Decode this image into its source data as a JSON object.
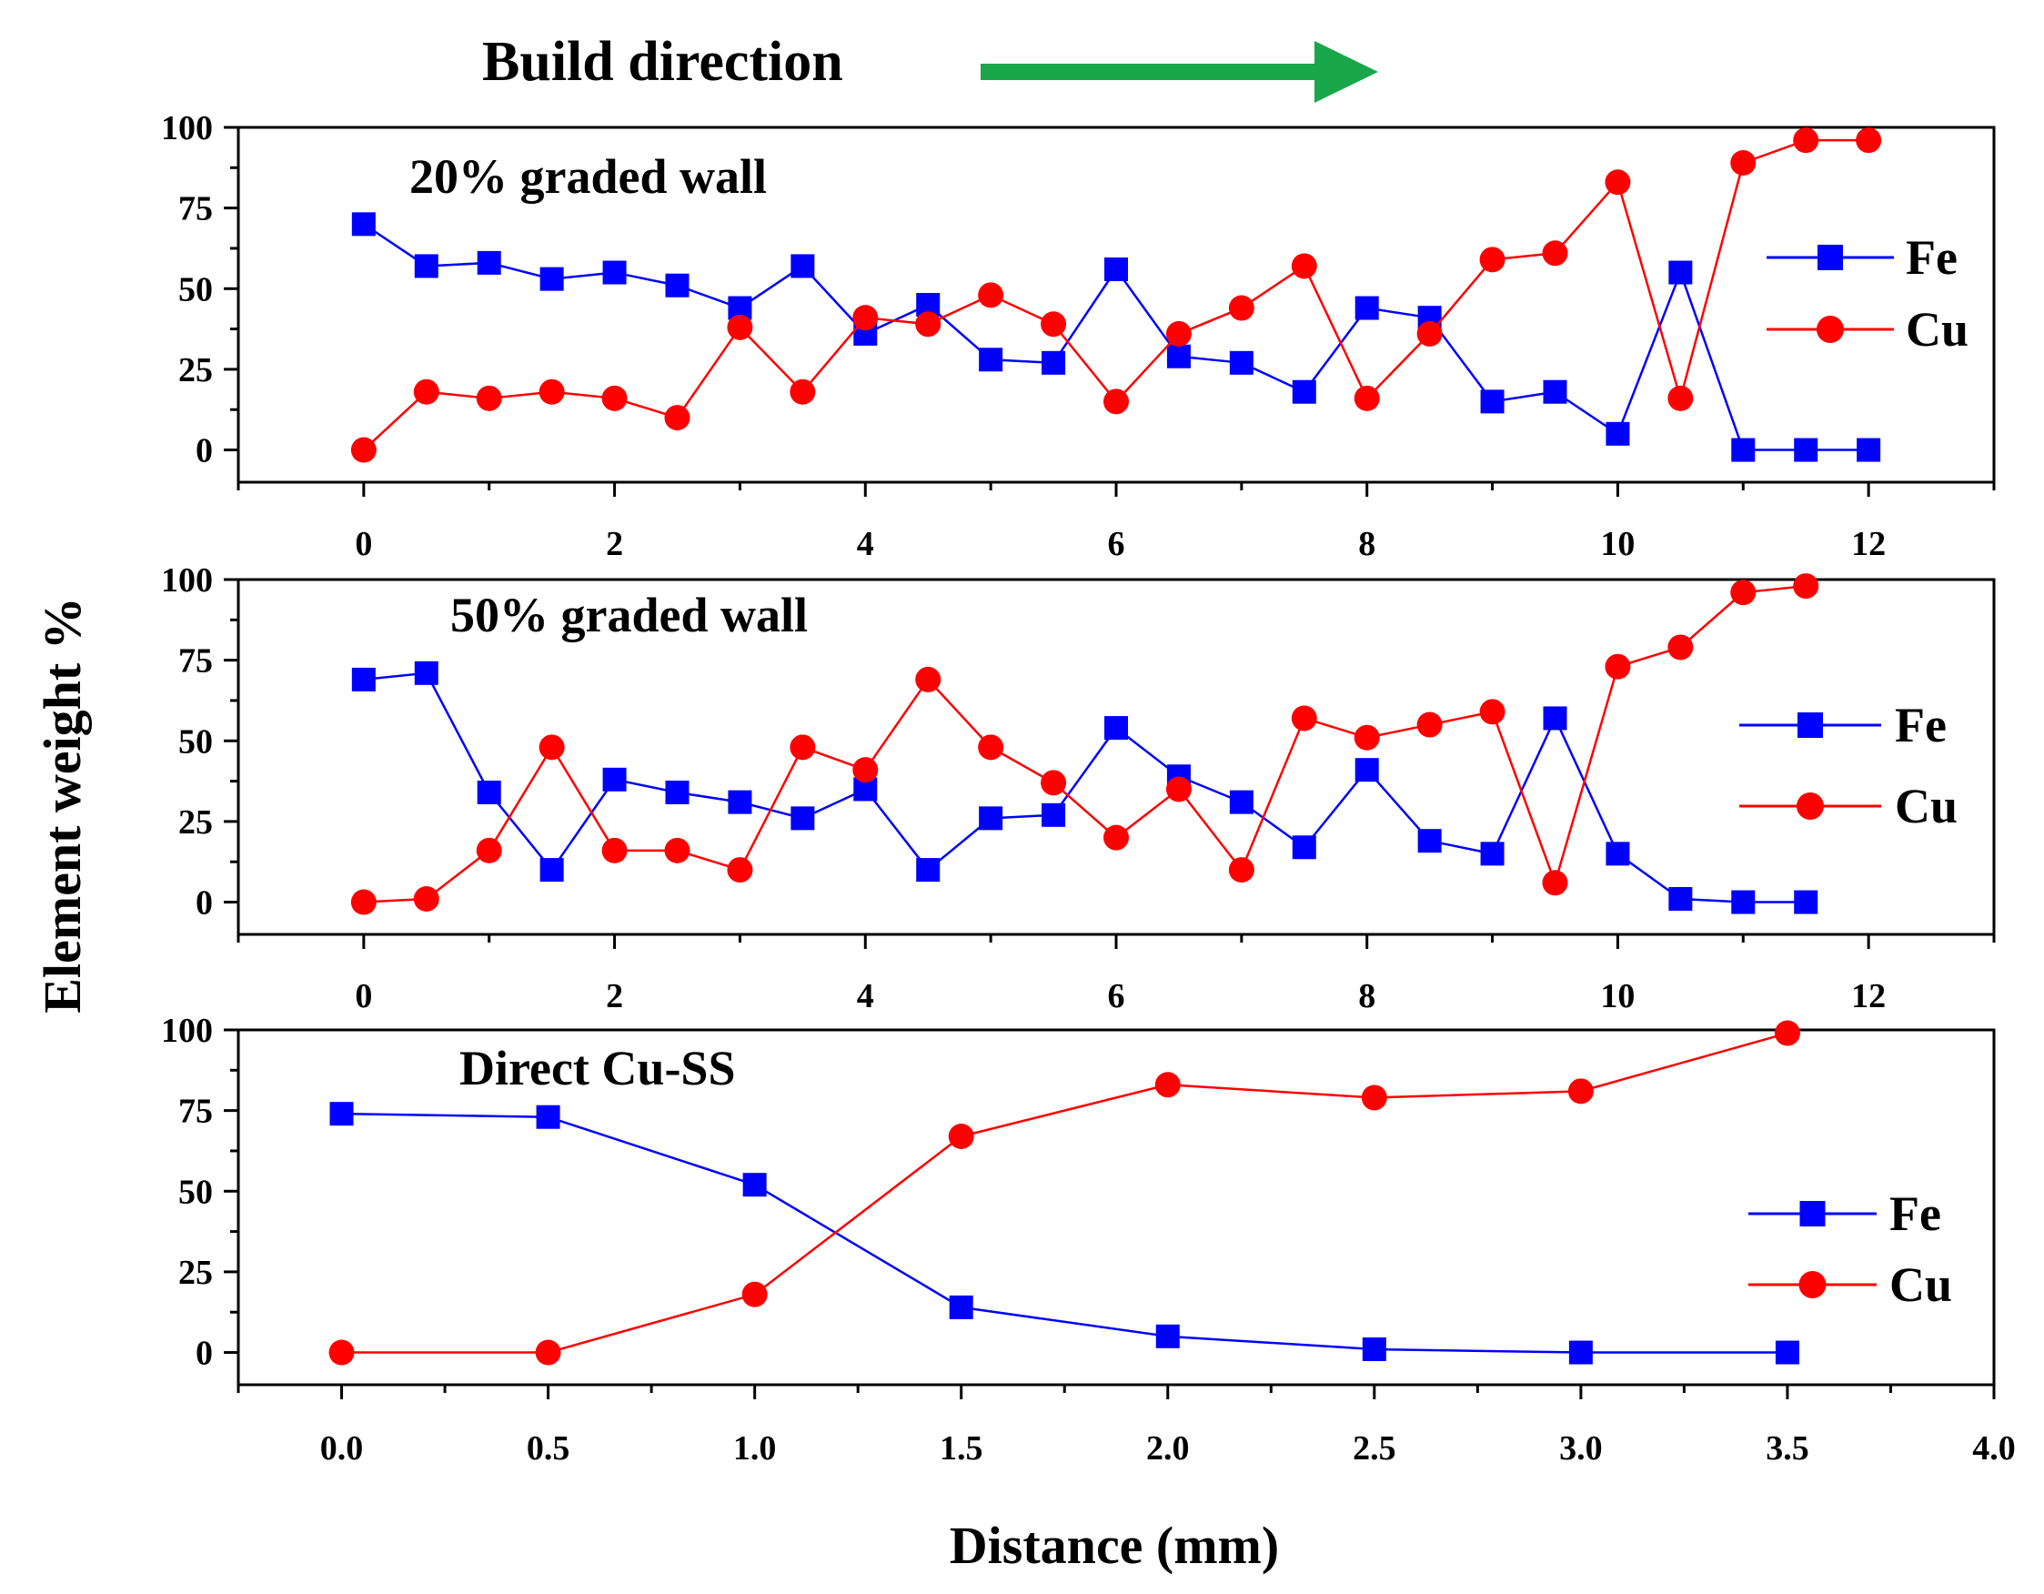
{
  "header": {
    "title": "Build direction",
    "arrow_color": "#1aa64a"
  },
  "colors": {
    "fe": "#0000ff",
    "cu": "#ff0000"
  },
  "ylabel": "Element weight %",
  "xlabel": "Distance (mm)",
  "chart_data": [
    {
      "type": "line",
      "title": "20% graded wall",
      "xlim": [
        -1,
        13
      ],
      "ylim": [
        -10,
        100
      ],
      "xticks": [
        0,
        2,
        4,
        6,
        8,
        10,
        12
      ],
      "xtick_labels": [
        "0",
        "2",
        "4",
        "6",
        "8",
        "10",
        "12"
      ],
      "yticks": [
        0,
        25,
        50,
        75,
        100
      ],
      "ytick_labels": [
        "0",
        "25",
        "50",
        "75",
        "100"
      ],
      "legend_position": "right",
      "series": [
        {
          "name": "Fe",
          "marker": "square",
          "color": "#0000ff",
          "dashed_points": [
            0,
            1,
            2,
            3,
            4,
            5,
            6,
            7,
            9,
            10,
            11,
            12,
            13,
            14,
            15,
            16,
            17,
            18,
            19,
            20,
            22,
            23,
            24
          ],
          "x": [
            0,
            0.5,
            1,
            1.5,
            2,
            2.5,
            3,
            3.5,
            4,
            4.5,
            5,
            5.5,
            6,
            6.5,
            7,
            7.5,
            8,
            8.5,
            9,
            9.5,
            10,
            10.5,
            11,
            11.5,
            12
          ],
          "y": [
            70,
            57,
            58,
            53,
            55,
            51,
            44,
            57,
            36,
            45,
            28,
            27,
            56,
            29,
            27,
            18,
            44,
            41,
            15,
            18,
            5,
            55,
            0,
            0,
            0
          ]
        },
        {
          "name": "Cu",
          "marker": "circle",
          "color": "#ff0000",
          "x": [
            0,
            0.5,
            1,
            1.5,
            2,
            2.5,
            3,
            3.5,
            4,
            4.5,
            5,
            5.5,
            6,
            6.5,
            7,
            7.5,
            8,
            8.5,
            9,
            9.5,
            10,
            10.5,
            11,
            11.5,
            12
          ],
          "y": [
            0,
            18,
            16,
            18,
            16,
            10,
            38,
            18,
            41,
            39,
            48,
            39,
            15,
            36,
            44,
            57,
            16,
            36,
            59,
            61,
            83,
            16,
            89,
            96,
            96
          ]
        }
      ]
    },
    {
      "type": "line",
      "title": "50% graded wall",
      "xlim": [
        -1,
        13
      ],
      "ylim": [
        -10,
        100
      ],
      "xticks": [
        0,
        2,
        4,
        6,
        8,
        10,
        12
      ],
      "xtick_labels": [
        "0",
        "2",
        "4",
        "6",
        "8",
        "10",
        "12"
      ],
      "yticks": [
        0,
        25,
        50,
        75,
        100
      ],
      "ytick_labels": [
        "0",
        "25",
        "50",
        "75",
        "100"
      ],
      "legend_position": "right",
      "series": [
        {
          "name": "Fe",
          "marker": "square",
          "color": "#0000ff",
          "x": [
            0,
            0.5,
            1,
            1.5,
            2,
            2.5,
            3,
            3.5,
            4,
            4.5,
            5,
            5.5,
            6,
            6.5,
            7,
            7.5,
            8,
            8.5,
            9,
            9.5,
            10,
            10.5,
            11,
            11.5
          ],
          "y": [
            69,
            71,
            34,
            10,
            38,
            34,
            31,
            26,
            35,
            10,
            26,
            27,
            54,
            39,
            31,
            17,
            41,
            19,
            15,
            57,
            15,
            1,
            0,
            0
          ]
        },
        {
          "name": "Cu",
          "marker": "circle",
          "color": "#ff0000",
          "x": [
            0,
            0.5,
            1,
            1.5,
            2,
            2.5,
            3,
            3.5,
            4,
            4.5,
            5,
            5.5,
            6,
            6.5,
            7,
            7.5,
            8,
            8.5,
            9,
            9.5,
            10,
            10.5,
            11,
            11.5
          ],
          "y": [
            0,
            1,
            16,
            48,
            16,
            16,
            10,
            48,
            41,
            69,
            48,
            37,
            20,
            35,
            10,
            57,
            51,
            55,
            59,
            6,
            73,
            79,
            96,
            98
          ]
        }
      ]
    },
    {
      "type": "line",
      "title": "Direct Cu-SS",
      "xlim": [
        -0.25,
        4.0
      ],
      "ylim": [
        -10,
        100
      ],
      "xticks": [
        0,
        0.5,
        1,
        1.5,
        2,
        2.5,
        3,
        3.5,
        4
      ],
      "xtick_labels": [
        "0.0",
        "0.5",
        "1.0",
        "1.5",
        "2.0",
        "2.5",
        "3.0",
        "3.5",
        "4.0"
      ],
      "yticks": [
        0,
        25,
        50,
        75,
        100
      ],
      "ytick_labels": [
        "0",
        "25",
        "50",
        "75",
        "100"
      ],
      "legend_position": "bottom-right",
      "series": [
        {
          "name": "Fe",
          "marker": "square",
          "color": "#0000ff",
          "x": [
            0,
            0.5,
            1,
            1.5,
            2,
            2.5,
            3,
            3.5
          ],
          "y": [
            74,
            73,
            52,
            14,
            5,
            1,
            0,
            0
          ]
        },
        {
          "name": "Cu",
          "marker": "circle",
          "color": "#ff0000",
          "x": [
            0,
            0.5,
            1,
            1.5,
            2,
            2.5,
            3,
            3.5
          ],
          "y": [
            0,
            0,
            18,
            67,
            83,
            79,
            81,
            99
          ]
        }
      ]
    }
  ]
}
